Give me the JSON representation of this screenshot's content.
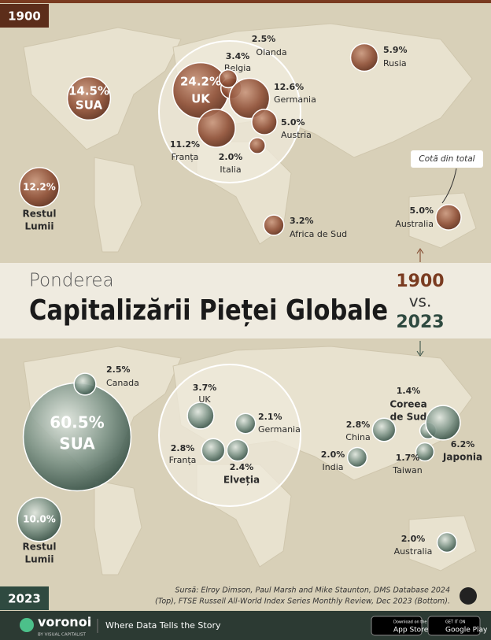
{
  "top": {
    "year": "1900",
    "items": [
      {
        "name": [
          "SUA"
        ],
        "value": 14.5,
        "value_label": "14.5%"
      },
      {
        "name": [
          "Restul",
          "Lumii"
        ],
        "value": 12.2,
        "value_label": "12.2%"
      },
      {
        "name": [
          "UK"
        ],
        "value": 24.2,
        "value_label": "24.2%"
      },
      {
        "name": [
          "Belgia"
        ],
        "value": 3.4,
        "value_label": "3.4%"
      },
      {
        "name": [
          "Olanda"
        ],
        "value": 2.5,
        "value_label": "2.5%"
      },
      {
        "name": [
          "Germania"
        ],
        "value": 12.6,
        "value_label": "12.6%"
      },
      {
        "name": [
          "Franța"
        ],
        "value": 11.2,
        "value_label": "11.2%"
      },
      {
        "name": [
          "Austria"
        ],
        "value": 5.0,
        "value_label": "5.0%"
      },
      {
        "name": [
          "Italia"
        ],
        "value": 2.0,
        "value_label": "2.0%"
      },
      {
        "name": [
          "Rusia"
        ],
        "value": 5.9,
        "value_label": "5.9%"
      },
      {
        "name": [
          "Africa de Sud"
        ],
        "value": 3.2,
        "value_label": "3.2%"
      },
      {
        "name": [
          "Australia"
        ],
        "value": 5.0,
        "value_label": "5.0%"
      }
    ]
  },
  "annotation": "Cotă din total",
  "title": {
    "line1": "Ponderea",
    "line2": "Capitalizării Pieței Globale",
    "year1": "1900",
    "vs": "vs.",
    "year2": "2023"
  },
  "bottom": {
    "year": "2023",
    "items": [
      {
        "name": [
          "SUA"
        ],
        "value": 60.5,
        "value_label": "60.5%"
      },
      {
        "name": [
          "Canada"
        ],
        "value": 2.5,
        "value_label": "2.5%"
      },
      {
        "name": [
          "Restul",
          "Lumii"
        ],
        "value": 10.0,
        "value_label": "10.0%"
      },
      {
        "name": [
          "UK"
        ],
        "value": 3.7,
        "value_label": "3.7%"
      },
      {
        "name": [
          "Germania"
        ],
        "value": 2.1,
        "value_label": "2.1%"
      },
      {
        "name": [
          "Franța"
        ],
        "value": 2.8,
        "value_label": "2.8%"
      },
      {
        "name": [
          "Elveția"
        ],
        "value": 2.4,
        "value_label": "2.4%"
      },
      {
        "name": [
          "China"
        ],
        "value": 2.8,
        "value_label": "2.8%"
      },
      {
        "name": [
          "India"
        ],
        "value": 2.0,
        "value_label": "2.0%"
      },
      {
        "name": [
          "Coreea",
          "de Sud"
        ],
        "value": 1.4,
        "value_label": "1.4%"
      },
      {
        "name": [
          "Japonia"
        ],
        "value": 6.2,
        "value_label": "6.2%"
      },
      {
        "name": [
          "Taiwan"
        ],
        "value": 1.7,
        "value_label": "1.7%"
      },
      {
        "name": [
          "Australia"
        ],
        "value": 2.0,
        "value_label": "2.0%"
      }
    ]
  },
  "source": [
    "Sursă: Elroy Dimson, Paul Marsh and Mike Staunton, DMS Database 2024",
    "(Top), FTSE Russell All-World Index Series Monthly Review, Dec 2023 (Bottom)."
  ],
  "footer": {
    "brand": "voronoi",
    "brand_sub": "BY VISUAL CAPITALIST",
    "tagline": "Where Data Tells the Story",
    "app_store_top": "Download on the",
    "app_store": "App Store",
    "google_play_top": "GET IT ON",
    "google_play": "Google Play"
  }
}
